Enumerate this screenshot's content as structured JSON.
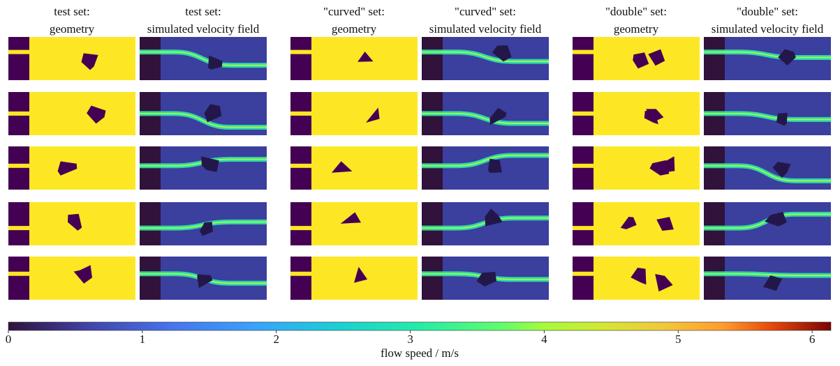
{
  "columns": [
    {
      "title": [
        "test set:",
        "geometry"
      ]
    },
    {
      "title": [
        "test set:",
        "simulated velocity field"
      ]
    },
    {
      "title": [
        "\"curved\" set:",
        "geometry"
      ]
    },
    {
      "title": [
        "\"curved\" set:",
        "simulated velocity field"
      ]
    },
    {
      "title": [
        "\"double\" set:",
        "geometry"
      ]
    },
    {
      "title": [
        "\"double\" set:",
        "simulated velocity field"
      ]
    }
  ],
  "colorbar": {
    "label": "flow speed  /  m/s",
    "lim": [
      0,
      6.14
    ],
    "ticks": [
      0,
      1,
      2,
      3,
      4,
      5,
      6
    ]
  }
}
